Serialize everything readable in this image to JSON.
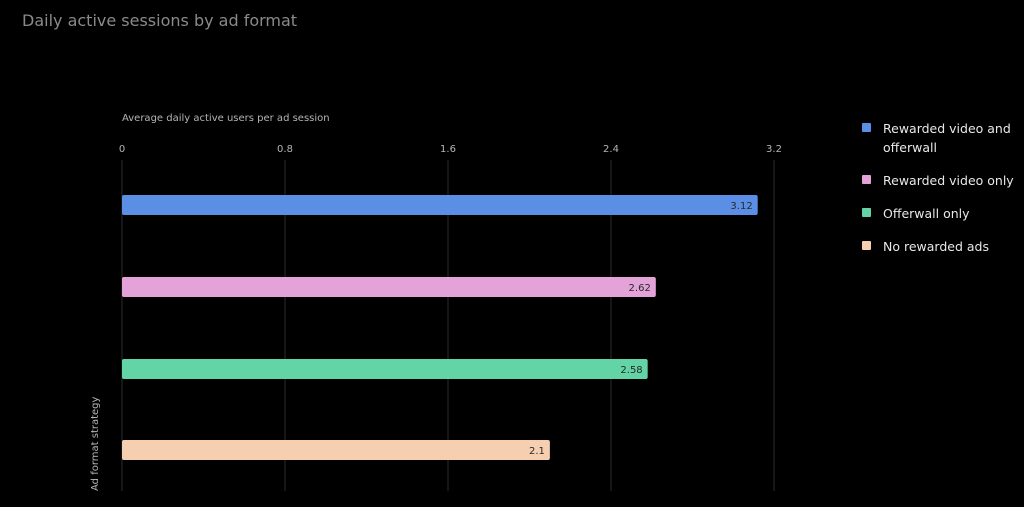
{
  "chart_data": {
    "type": "bar",
    "orientation": "horizontal",
    "title": "Daily active sessions by ad format",
    "xlabel": "Average daily active users per ad session",
    "ylabel": "Ad format strategy",
    "xlim": [
      0,
      3.2
    ],
    "xticks": [
      "0",
      "0.8",
      "1.6",
      "2.4",
      "3.2"
    ],
    "grid": true,
    "legend_position": "right",
    "categories": [
      "Rewarded video and offerwall",
      "Rewarded video only",
      "Offerwall only",
      "No rewarded ads"
    ],
    "values": [
      3.12,
      2.62,
      2.58,
      2.1
    ],
    "value_labels": [
      "3.12",
      "2.62",
      "2.58",
      "2.1"
    ],
    "colors": [
      "#5b8fe6",
      "#e3a2d8",
      "#63d4a6",
      "#f6ceb0"
    ]
  },
  "legend": {
    "items": [
      {
        "label": "Rewarded video and offerwall",
        "color": "#5b8fe6"
      },
      {
        "label": "Rewarded video only",
        "color": "#e3a2d8"
      },
      {
        "label": "Offerwall only",
        "color": "#63d4a6"
      },
      {
        "label": "No rewarded ads",
        "color": "#f6ceb0"
      }
    ]
  }
}
